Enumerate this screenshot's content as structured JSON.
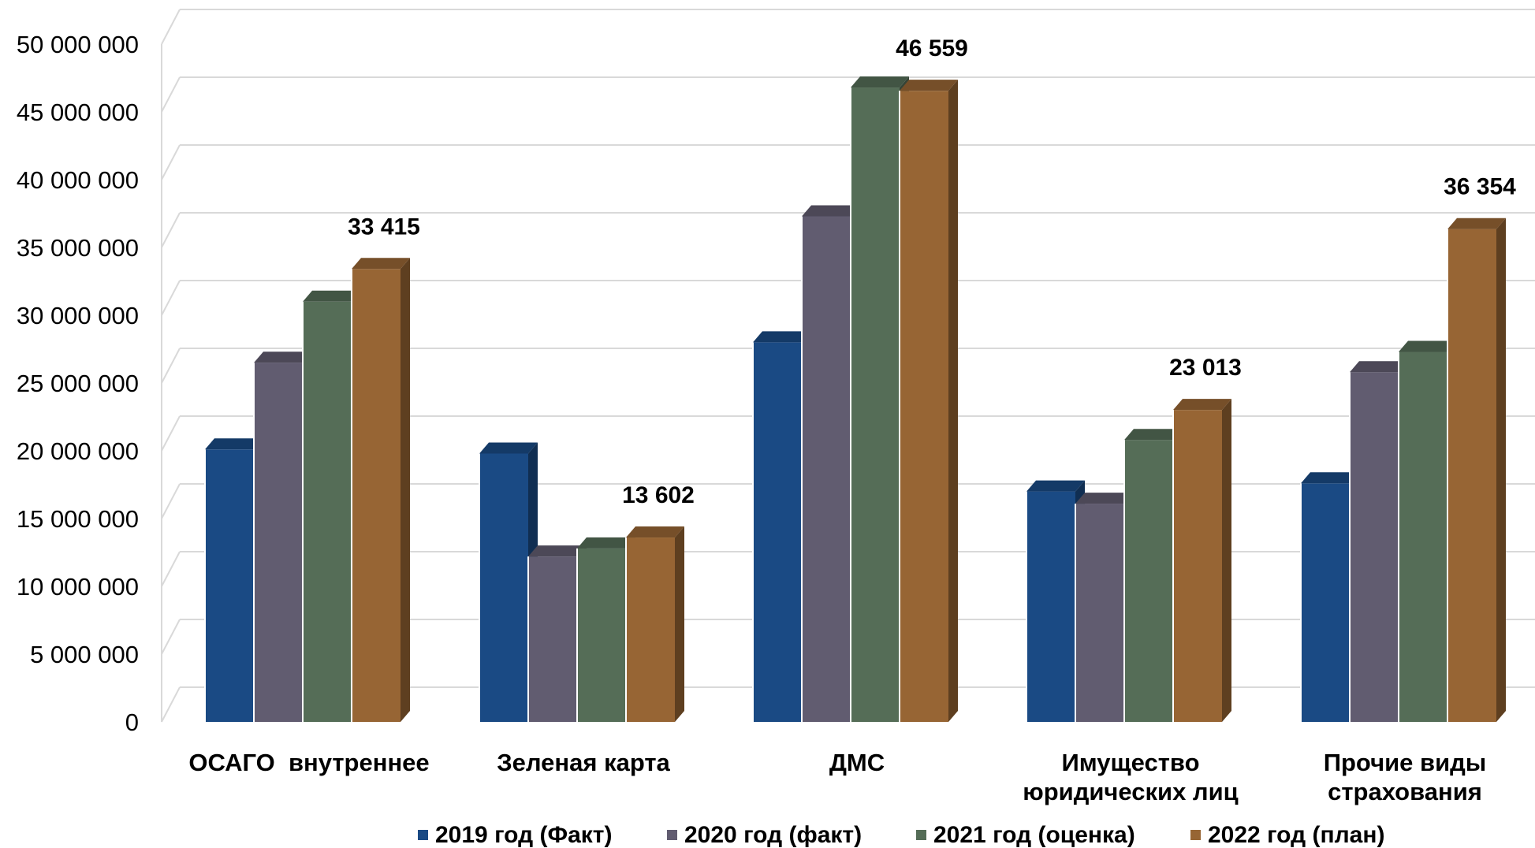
{
  "chart_data": {
    "type": "bar",
    "categories": [
      [
        "ОСАГО  внутреннее"
      ],
      [
        "Зеленая карта"
      ],
      [
        "ДМС"
      ],
      [
        "Имущество",
        "юридических лиц"
      ],
      [
        "Прочие виды",
        "страхования"
      ]
    ],
    "series": [
      {
        "name": "2019 год (Факт)",
        "color": "#1A4A84",
        "values": [
          20100000,
          19800000,
          28000000,
          17000000,
          17600000
        ]
      },
      {
        "name": "2020 год (факт)",
        "color": "#615C70",
        "values": [
          26500000,
          12200000,
          37300000,
          16100000,
          25800000
        ]
      },
      {
        "name": "2021 год (оценка)",
        "color": "#556D57",
        "values": [
          31000000,
          12800000,
          46800000,
          20800000,
          27300000
        ]
      },
      {
        "name": "2022 год (план)",
        "color": "#976534",
        "values": [
          33415000,
          13602000,
          46559000,
          23013000,
          36354000
        ]
      }
    ],
    "data_labels": [
      {
        "series": 3,
        "category": 0,
        "text": "33 415"
      },
      {
        "series": 3,
        "category": 1,
        "text": "13 602"
      },
      {
        "series": 3,
        "category": 2,
        "text": "46 559"
      },
      {
        "series": 3,
        "category": 3,
        "text": "23 013"
      },
      {
        "series": 3,
        "category": 4,
        "text": "36 354"
      }
    ],
    "y_ticks": [
      {
        "value": 0,
        "label": "0"
      },
      {
        "value": 5000000,
        "label": "5 000 000"
      },
      {
        "value": 10000000,
        "label": "10 000 000"
      },
      {
        "value": 15000000,
        "label": "15 000 000"
      },
      {
        "value": 20000000,
        "label": "20 000 000"
      },
      {
        "value": 25000000,
        "label": "25 000 000"
      },
      {
        "value": 30000000,
        "label": "30 000 000"
      },
      {
        "value": 35000000,
        "label": "35 000 000"
      },
      {
        "value": 40000000,
        "label": "40 000 000"
      },
      {
        "value": 45000000,
        "label": "45 000 000"
      },
      {
        "value": 50000000,
        "label": "50 000 000"
      }
    ],
    "ylim": [
      0,
      50000000
    ],
    "grid": true,
    "legend_position": "bottom",
    "title": "",
    "xlabel": "",
    "ylabel": ""
  }
}
